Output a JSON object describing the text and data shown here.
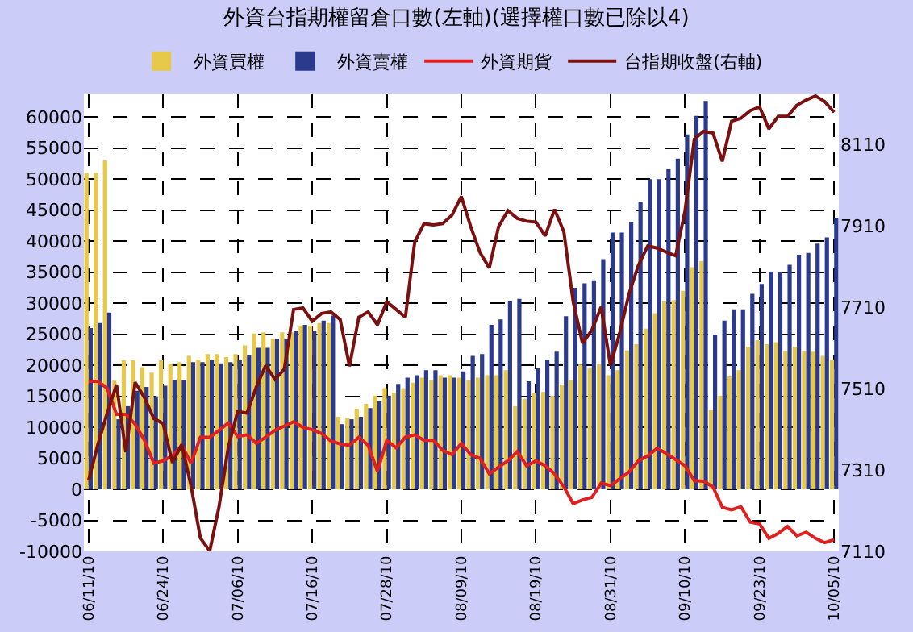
{
  "chart_data": {
    "type": "bar",
    "title": "外資台指期權留倉口數(左軸)(選擇權口數已除以4)",
    "categories": [
      "06/11/10",
      null,
      null,
      null,
      null,
      null,
      null,
      null,
      "06/24/10",
      null,
      null,
      null,
      null,
      null,
      null,
      null,
      "07/06/10",
      null,
      null,
      null,
      null,
      null,
      null,
      null,
      "07/16/10",
      null,
      null,
      null,
      null,
      null,
      null,
      null,
      "07/28/10",
      null,
      null,
      null,
      null,
      null,
      null,
      null,
      "08/09/10",
      null,
      null,
      null,
      null,
      null,
      null,
      null,
      "08/19/10",
      null,
      null,
      null,
      null,
      null,
      null,
      null,
      "08/31/10",
      null,
      null,
      null,
      null,
      null,
      null,
      null,
      "09/10/10",
      null,
      null,
      null,
      null,
      null,
      null,
      null,
      "09/23/10",
      null,
      null,
      null,
      null,
      null,
      null,
      null,
      "10/05/10"
    ],
    "series": [
      {
        "name": "外資買權",
        "color": "#e6c84a",
        "values": [
          51000,
          51000,
          53000,
          17500,
          20800,
          20800,
          19700,
          18800,
          20800,
          20200,
          20500,
          21500,
          20900,
          21800,
          21800,
          21300,
          21800,
          23200,
          25100,
          25300,
          24300,
          25300,
          25300,
          26400,
          26400,
          26800,
          26800,
          11700,
          11500,
          13000,
          13800,
          15100,
          16300,
          15600,
          16300,
          17200,
          18000,
          17600,
          18400,
          18400,
          18000,
          17600,
          18000,
          18400,
          18400,
          19200,
          13400,
          14600,
          15500,
          15700,
          15100,
          16900,
          17600,
          20100,
          19500,
          20200,
          18400,
          19200,
          22400,
          23400,
          25900,
          28400,
          30300,
          30500,
          32000,
          35800,
          36800,
          12800,
          15100,
          18200,
          19200,
          23000,
          24000,
          23400,
          23700,
          22300,
          23000,
          22300,
          22200,
          21500,
          20900
        ]
      },
      {
        "name": "外資賣權",
        "color": "#2b3a8c",
        "values": [
          26000,
          26800,
          28500,
          11300,
          13400,
          15900,
          16500,
          15000,
          16700,
          17600,
          17600,
          20500,
          20500,
          20800,
          20300,
          20500,
          20800,
          21600,
          22800,
          22800,
          24300,
          24300,
          25500,
          26500,
          25500,
          27200,
          28000,
          10500,
          11300,
          11700,
          13100,
          14200,
          15100,
          17000,
          18000,
          18400,
          19200,
          19200,
          18000,
          18000,
          19000,
          21500,
          21800,
          26500,
          27400,
          30300,
          30700,
          17400,
          19500,
          20900,
          22200,
          27900,
          32500,
          33200,
          33700,
          37100,
          41400,
          41400,
          43100,
          46300,
          50000,
          50000,
          51600,
          53300,
          57200,
          60200,
          62600,
          24900,
          27200,
          29000,
          29000,
          31500,
          33100,
          35100,
          35000,
          36200,
          37800,
          38100,
          39600,
          40600,
          43800
        ]
      },
      {
        "name": "外資期貨",
        "type": "line",
        "color": "#e02020",
        "values": [
          17400,
          17400,
          16300,
          12100,
          12100,
          10500,
          7900,
          4200,
          4600,
          5400,
          7100,
          4200,
          8400,
          8400,
          9500,
          10700,
          8500,
          8800,
          7400,
          8400,
          9500,
          10200,
          10900,
          10000,
          9600,
          9000,
          7800,
          7300,
          7100,
          8400,
          7100,
          2900,
          7900,
          6700,
          8400,
          8800,
          7900,
          7900,
          6300,
          5600,
          7400,
          5600,
          5000,
          2500,
          3600,
          4600,
          6100,
          3800,
          4600,
          3800,
          2500,
          400,
          -2300,
          -1700,
          -1300,
          1000,
          600,
          1700,
          2800,
          4600,
          5400,
          6600,
          5800,
          4800,
          3800,
          1400,
          1300,
          400,
          -2900,
          -3300,
          -2800,
          -5300,
          -5600,
          -7900,
          -7100,
          -6000,
          -7500,
          -6900,
          -7900,
          -8600,
          -8100
        ]
      },
      {
        "name": "台指期收盤(右軸)",
        "type": "line",
        "axis": "y2",
        "color": "#7a1010",
        "values": [
          7284,
          7373,
          7450,
          7520,
          7354,
          7526,
          7488,
          7437,
          7424,
          7328,
          7373,
          7271,
          7143,
          7111,
          7220,
          7367,
          7454,
          7450,
          7514,
          7567,
          7533,
          7558,
          7705,
          7709,
          7676,
          7695,
          7699,
          7680,
          7565,
          7686,
          7699,
          7667,
          7724,
          7705,
          7686,
          7871,
          7916,
          7913,
          7916,
          7937,
          7983,
          7909,
          7845,
          7807,
          7909,
          7948,
          7929,
          7922,
          7920,
          7886,
          7951,
          7896,
          7724,
          7622,
          7654,
          7711,
          7567,
          7648,
          7744,
          7814,
          7861,
          7856,
          7846,
          7837,
          7948,
          8124,
          8143,
          8139,
          8069,
          8168,
          8175,
          8194,
          8203,
          8149,
          8180,
          8180,
          8207,
          8220,
          8230,
          8216,
          8190
        ]
      }
    ],
    "ylim": [
      -10000,
      63800
    ],
    "yticks": [
      -10000,
      -5000,
      0,
      5000,
      10000,
      15000,
      20000,
      25000,
      30000,
      35000,
      40000,
      45000,
      50000,
      55000,
      60000
    ],
    "y2lim": [
      7110,
      8236
    ],
    "y2ticks": [
      7110,
      7310,
      7510,
      7710,
      7910,
      8110
    ],
    "grid": true,
    "legend": "top"
  }
}
